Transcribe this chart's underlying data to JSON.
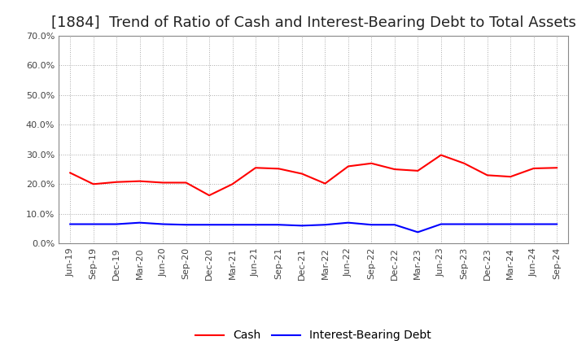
{
  "title": "[1884]  Trend of Ratio of Cash and Interest-Bearing Debt to Total Assets",
  "x_labels": [
    "Jun-19",
    "Sep-19",
    "Dec-19",
    "Mar-20",
    "Jun-20",
    "Sep-20",
    "Dec-20",
    "Mar-21",
    "Jun-21",
    "Sep-21",
    "Dec-21",
    "Mar-22",
    "Jun-22",
    "Sep-22",
    "Dec-22",
    "Mar-23",
    "Jun-23",
    "Sep-23",
    "Dec-23",
    "Mar-24",
    "Jun-24",
    "Sep-24"
  ],
  "cash": [
    0.238,
    0.2,
    0.207,
    0.21,
    0.205,
    0.205,
    0.162,
    0.2,
    0.255,
    0.252,
    0.235,
    0.202,
    0.26,
    0.27,
    0.25,
    0.245,
    0.298,
    0.27,
    0.23,
    0.225,
    0.253,
    0.255
  ],
  "debt": [
    0.065,
    0.065,
    0.065,
    0.07,
    0.065,
    0.063,
    0.063,
    0.063,
    0.063,
    0.063,
    0.06,
    0.063,
    0.07,
    0.063,
    0.063,
    0.038,
    0.065,
    0.065,
    0.065,
    0.065,
    0.065,
    0.065
  ],
  "cash_color": "#ff0000",
  "debt_color": "#0000ff",
  "ylim": [
    0.0,
    0.7
  ],
  "yticks": [
    0.0,
    0.1,
    0.2,
    0.3,
    0.4,
    0.5,
    0.6,
    0.7
  ],
  "background_color": "#ffffff",
  "grid_color": "#aaaaaa",
  "legend_cash": "Cash",
  "legend_debt": "Interest-Bearing Debt",
  "title_fontsize": 13,
  "axis_fontsize": 8,
  "legend_fontsize": 10
}
